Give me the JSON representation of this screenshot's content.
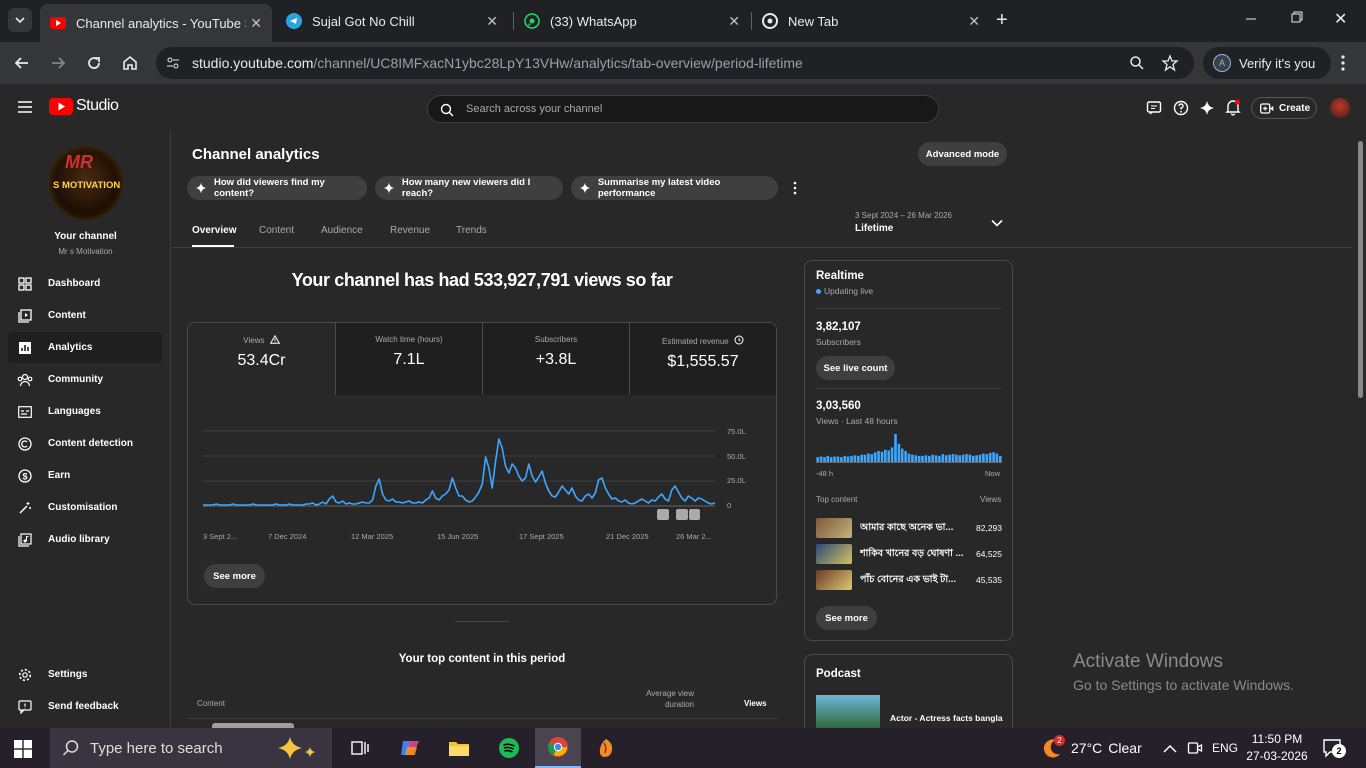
{
  "browser": {
    "tabs": [
      {
        "title": "Channel analytics - YouTube Stu",
        "active": true
      },
      {
        "title": "Sujal Got No Chill",
        "active": false
      },
      {
        "title": "(33) WhatsApp",
        "active": false
      },
      {
        "title": "New Tab",
        "active": false
      }
    ],
    "url_host": "studio.youtube.com",
    "url_path": "/channel/UC8IMFxacN1ybc28LpY13VHw/analytics/tab-overview/period-lifetime",
    "verify_label": "Verify it's you",
    "profile_initial": "A"
  },
  "header": {
    "logo_text": "Studio",
    "search_placeholder": "Search across your channel",
    "create_label": "Create"
  },
  "sidebar": {
    "avatar_line1": "MR",
    "avatar_line2": "S MOTIVATION",
    "your_channel": "Your channel",
    "channel_name": "Mr s Motivation",
    "items": [
      {
        "label": "Dashboard",
        "icon": "grid-icon"
      },
      {
        "label": "Content",
        "icon": "content-icon"
      },
      {
        "label": "Analytics",
        "icon": "analytics-icon"
      },
      {
        "label": "Community",
        "icon": "community-icon"
      },
      {
        "label": "Languages",
        "icon": "subtitles-icon"
      },
      {
        "label": "Content detection",
        "icon": "copyright-icon"
      },
      {
        "label": "Earn",
        "icon": "dollar-icon"
      },
      {
        "label": "Customisation",
        "icon": "wand-icon"
      },
      {
        "label": "Audio library",
        "icon": "audio-library-icon"
      }
    ],
    "settings": "Settings",
    "feedback": "Send feedback"
  },
  "analytics": {
    "title": "Channel analytics",
    "advanced_mode": "Advanced mode",
    "suggestions": [
      "How did viewers find my content?",
      "How many new viewers did I reach?",
      "Summarise my latest video performance"
    ],
    "tabs": [
      "Overview",
      "Content",
      "Audience",
      "Revenue",
      "Trends"
    ],
    "period_range": "3 Sept 2024 – 26 Mar 2026",
    "period_label": "Lifetime",
    "headline": "Your channel has had 533,927,791 views so far",
    "metrics": [
      {
        "label": "Views",
        "value": "53.4Cr"
      },
      {
        "label": "Watch time (hours)",
        "value": "7.1L"
      },
      {
        "label": "Subscribers",
        "value": "+3.8L"
      },
      {
        "label": "Estimated revenue",
        "value": "$1,555.57"
      }
    ],
    "see_more": "See more",
    "top_content_title": "Your top content in this period",
    "table_headers": {
      "content": "Content",
      "avg_view_duration": "Average view duration",
      "views": "Views"
    }
  },
  "chart_data": {
    "type": "line",
    "x_tick_labels": [
      "3 Sept 2...",
      "7 Dec 2024",
      "12 Mar 2025",
      "15 Jun 2025",
      "17 Sept 2025",
      "21 Dec 2025",
      "26 Mar 2..."
    ],
    "y_tick_labels": [
      "75.0L",
      "50.0L",
      "25.0L",
      "0"
    ],
    "ylim": [
      0,
      75
    ],
    "y_unit": "L",
    "series": [
      {
        "values": [
          1,
          1,
          1,
          1,
          2,
          1,
          1,
          1,
          1,
          2,
          1,
          1,
          1,
          1,
          1,
          2,
          1,
          1,
          1,
          1,
          1,
          1,
          2,
          1,
          1,
          1,
          2,
          1,
          1,
          1,
          1,
          2,
          2,
          3,
          1,
          2,
          4,
          2,
          7,
          10,
          4,
          3,
          5,
          2,
          3,
          2,
          2,
          3,
          4,
          3,
          3,
          6,
          20,
          27,
          12,
          6,
          5,
          7,
          4,
          4,
          3,
          4,
          5,
          3,
          3,
          4,
          3,
          6,
          8,
          15,
          8,
          6,
          10,
          12,
          16,
          28,
          18,
          10,
          10,
          6,
          4,
          5,
          9,
          14,
          22,
          49,
          38,
          18,
          45,
          67,
          58,
          40,
          33,
          42,
          38,
          30,
          25,
          28,
          42,
          30,
          24,
          29,
          35,
          23,
          15,
          10,
          9,
          14,
          20,
          16,
          12,
          18,
          10,
          6,
          5,
          10,
          12,
          8,
          13,
          26,
          28,
          18,
          12,
          7,
          8,
          5,
          4,
          6,
          3,
          2,
          3,
          5,
          7,
          5,
          3,
          6,
          5,
          9,
          12,
          7,
          5,
          16,
          20,
          14,
          8,
          5,
          10,
          8,
          5,
          8,
          7,
          5,
          3,
          2,
          3
        ]
      }
    ]
  },
  "realtime": {
    "title": "Realtime",
    "status": "Updating live",
    "subs_value": "3,82,107",
    "subs_label": "Subscribers",
    "see_live": "See live count",
    "views_value": "3,03,560",
    "views_label": "Views · Last 48 hours",
    "spark_start": "-48 h",
    "spark_end": "Now",
    "spark_values": [
      8,
      9,
      8,
      10,
      8,
      9,
      9,
      8,
      10,
      9,
      10,
      11,
      10,
      12,
      12,
      14,
      13,
      16,
      18,
      17,
      20,
      19,
      24,
      46,
      30,
      22,
      18,
      14,
      12,
      11,
      10,
      10,
      11,
      10,
      12,
      11,
      10,
      13,
      11,
      12,
      13,
      12,
      11,
      12,
      13,
      12,
      10,
      11,
      12,
      14,
      13,
      15,
      16,
      14,
      10
    ],
    "top_content_label": "Top content",
    "views_col": "Views",
    "top_items": [
      {
        "title": "আমার কাছে অনেক ভা...",
        "views": "82,293"
      },
      {
        "title": "শাকিব খানের বড় ঘোষণা ...",
        "views": "64,525"
      },
      {
        "title": "পাঁচ বোনের এক ভাই টা...",
        "views": "45,535"
      }
    ],
    "see_more": "See more"
  },
  "podcast": {
    "title": "Podcast",
    "item_title": "Actor - Actress facts bangla"
  },
  "watermark": {
    "line1": "Activate Windows",
    "line2": "Go to Settings to activate Windows."
  },
  "taskbar": {
    "search_placeholder": "Type here to search",
    "weather_temp": "27°C",
    "weather_text": "Clear",
    "weather_badge": "2",
    "lang": "ENG",
    "time": "11:50 PM",
    "date": "27-03-2026",
    "notif_count": "2"
  }
}
